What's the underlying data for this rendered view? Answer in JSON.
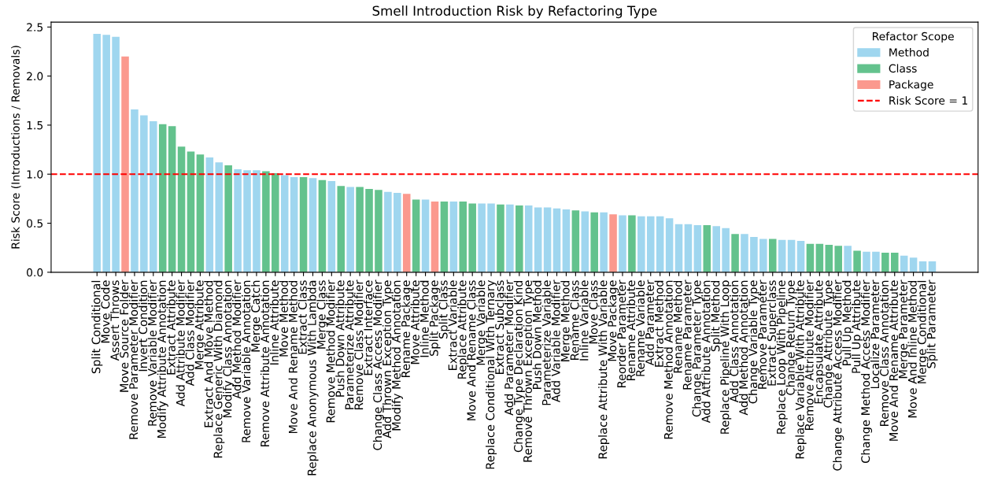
{
  "chart_data": {
    "type": "bar",
    "title": "Smell Introduction Risk by Refactoring Type",
    "ylabel": "Risk Score (Introductions / Removals)",
    "legend_title": "Refactor Scope",
    "legend": "top right",
    "grid": false,
    "ylim": [
      0,
      2.55
    ],
    "yticks": [
      {
        "value": 0,
        "label": "0.0"
      },
      0.5,
      {
        "value": 1,
        "label": "1.0"
      },
      1.5,
      {
        "value": 2,
        "label": "2.0"
      },
      2.5
    ],
    "categories": [
      "Split Conditional",
      "Move Code",
      "Assert Throws",
      "Move Source Folder",
      "Remove Parameter Modifier",
      "Invert Condition",
      "Remove Variable Modifier",
      "Modify Attribute Annotation",
      "Extract Attribute",
      "Add Attribute Modifier",
      "Add Class Modifier",
      "Merge Attribute",
      "Extract And Move Method",
      "Replace Generic With Diamond",
      "Modify Class Annotation",
      "Add Method Modifier",
      "Remove Variable Annotation",
      "Merge Catch",
      "Remove Attribute Annotation",
      "Inline Attribute",
      "Move Method",
      "Move And Rename Method",
      "Extract Class",
      "Replace Anonymous With Lambda",
      "Merge Class",
      "Remove Method Modifier",
      "Push Down Attribute",
      "Parameterize Attribute",
      "Remove Class Modifier",
      "Extract Interface",
      "Change Class Access Modifier",
      "Add Thrown Exception Type",
      "Modify Method Annotation",
      "Rename Package",
      "Move Attribute",
      "Inline Method",
      "Split Package",
      "Split Class",
      "Extract Variable",
      "Replace Attribute",
      "Move And Rename Class",
      "Merge Variable",
      "Replace Conditional With Ternary",
      "Extract Subclass",
      "Add Parameter Modifier",
      "Change Type Declaration Kind",
      "Remove Thrown Exception Type",
      "Push Down Method",
      "Parameterize Variable",
      "Add Variable Modifier",
      "Merge Method",
      "Rename Class",
      "Inline Variable",
      "Move Class",
      "Replace Attribute With Variable",
      "Move Package",
      "Reorder Parameter",
      "Rename Attribute",
      "Rename Variable",
      "Add Parameter",
      "Extract Method",
      "Remove Method Annotation",
      "Rename Method",
      "Rename Parameter",
      "Change Parameter Type",
      "Add Attribute Annotation",
      "Split Method",
      "Replace Pipeline With Loop",
      "Add Class Annotation",
      "Add Method Annotation",
      "Change Variable Type",
      "Remove Parameter",
      "Extract Superclass",
      "Replace Loop With Pipeline",
      "Change Return Type",
      "Replace Variable With Attribute",
      "Remove Attribute Modifier",
      "Encapsulate Attribute",
      "Change Attribute Type",
      "Change Attribute Access Modifier",
      "Pull Up Method",
      "Pull Up Attribute",
      "Change Method Access Modifier",
      "Localize Parameter",
      "Remove Class Annotation",
      "Move And Rename Attribute",
      "Merge Parameter",
      "Move And Inline Method",
      "Merge Conditional",
      "Split Parameter"
    ],
    "series": [
      {
        "name": "Method",
        "color": "#9fd6ef",
        "values": [
          2.43,
          2.42,
          2.4,
          null,
          1.66,
          1.6,
          1.54,
          null,
          null,
          null,
          null,
          null,
          1.17,
          1.12,
          null,
          1.05,
          1.04,
          1.04,
          null,
          null,
          0.99,
          0.97,
          null,
          0.96,
          null,
          0.93,
          null,
          0.87,
          null,
          null,
          null,
          0.82,
          0.81,
          null,
          null,
          0.74,
          null,
          null,
          0.72,
          null,
          null,
          0.7,
          0.7,
          null,
          0.69,
          null,
          0.68,
          0.66,
          0.66,
          0.65,
          0.64,
          null,
          0.62,
          null,
          0.61,
          null,
          0.58,
          null,
          0.57,
          0.57,
          0.57,
          0.55,
          0.49,
          0.49,
          0.48,
          null,
          0.47,
          0.45,
          null,
          0.39,
          0.36,
          0.34,
          null,
          0.33,
          0.33,
          0.32,
          null,
          null,
          null,
          null,
          0.27,
          null,
          0.21,
          0.21,
          null,
          null,
          0.17,
          0.15,
          0.11,
          0.11
        ]
      },
      {
        "name": "Class",
        "color": "#63c28d",
        "values": [
          null,
          null,
          null,
          null,
          null,
          null,
          null,
          1.51,
          1.49,
          1.28,
          1.23,
          1.2,
          null,
          null,
          1.09,
          null,
          null,
          null,
          1.03,
          1.01,
          null,
          null,
          0.97,
          null,
          0.94,
          null,
          0.88,
          null,
          0.87,
          0.85,
          0.84,
          null,
          null,
          null,
          0.74,
          null,
          null,
          0.72,
          null,
          0.72,
          0.7,
          null,
          null,
          0.69,
          null,
          0.68,
          null,
          null,
          null,
          null,
          null,
          0.63,
          null,
          0.61,
          null,
          null,
          null,
          0.58,
          null,
          null,
          null,
          null,
          null,
          null,
          null,
          0.48,
          null,
          null,
          0.39,
          null,
          null,
          null,
          0.34,
          null,
          null,
          null,
          0.29,
          0.29,
          0.28,
          0.27,
          null,
          0.22,
          null,
          null,
          0.2,
          0.2,
          null,
          null,
          null,
          null
        ]
      },
      {
        "name": "Package",
        "color": "#fb998e",
        "values": [
          null,
          null,
          null,
          2.2,
          null,
          null,
          null,
          null,
          null,
          null,
          null,
          null,
          null,
          null,
          null,
          null,
          null,
          null,
          null,
          null,
          null,
          null,
          null,
          null,
          null,
          null,
          null,
          null,
          null,
          null,
          null,
          null,
          null,
          0.8,
          null,
          null,
          0.72,
          null,
          null,
          null,
          null,
          null,
          null,
          null,
          null,
          null,
          null,
          null,
          null,
          null,
          null,
          null,
          null,
          null,
          null,
          0.59,
          null,
          null,
          null,
          null,
          null,
          null,
          null,
          null,
          null,
          null,
          null,
          null,
          null,
          null,
          null,
          null,
          null,
          null,
          null,
          null,
          null,
          null,
          null,
          null,
          null,
          null,
          null,
          null,
          null,
          null,
          null,
          null,
          null,
          null
        ]
      }
    ],
    "ref_lines": [
      {
        "axis": "y",
        "value": 1,
        "label": "Risk Score = 1",
        "color": "#ff0000",
        "line_style": "dashed"
      }
    ]
  }
}
